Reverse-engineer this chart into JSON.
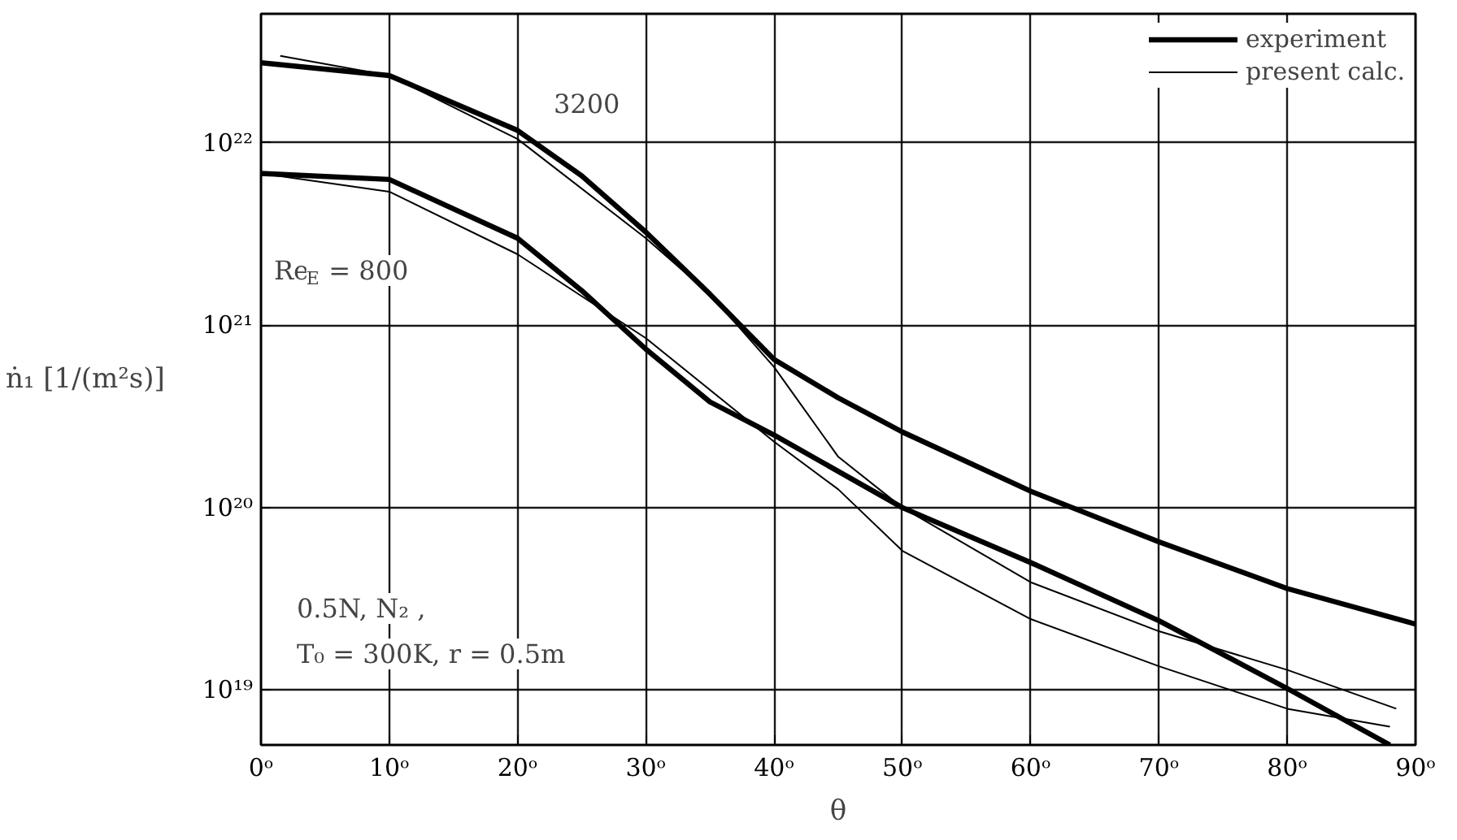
{
  "chart_data": {
    "type": "line",
    "xlabel": "θ",
    "ylabel": "ṅ₁ [1/(m²s)]",
    "log": "y",
    "grid": true,
    "legend": "top right",
    "marker": "none",
    "line_style": "solid",
    "xlim": [
      0,
      90
    ],
    "xticks": [
      {
        "value": 0,
        "label": "0ᵒ"
      },
      {
        "value": 10,
        "label": "10ᵒ"
      },
      {
        "value": 20,
        "label": "20ᵒ"
      },
      {
        "value": 30,
        "label": "30ᵒ"
      },
      {
        "value": 40,
        "label": "40ᵒ"
      },
      {
        "value": 50,
        "label": "50ᵒ"
      },
      {
        "value": 60,
        "label": "60ᵒ"
      },
      {
        "value": 70,
        "label": "70ᵒ"
      },
      {
        "value": 80,
        "label": "80ᵒ"
      },
      {
        "value": 90,
        "label": "90ᵒ"
      }
    ],
    "ylim": [
      5e+18,
      5.1e+22
    ],
    "yticks": [
      {
        "value": 1e+19,
        "label": "10¹⁹"
      },
      {
        "value": 1e+20,
        "label": "10²⁰"
      },
      {
        "value": 1e+21,
        "label": "10²¹"
      },
      {
        "value": 1e+22,
        "label": "10²²"
      }
    ],
    "series": [
      {
        "name": "experiment",
        "color": "#000000",
        "x": [
          0,
          10,
          20,
          25,
          30,
          35,
          40,
          45,
          50,
          60,
          70,
          80,
          90
        ],
        "values": [
          2.75e+22,
          2.34e+22,
          1.17e+22,
          6.6e+21,
          3.24e+21,
          1.48e+21,
          6.5e+20,
          4e+20,
          2.6e+20,
          1.23e+20,
          6.5e+19,
          3.6e+19,
          2.3e+19
        ]
      },
      {
        "color": "#000000",
        "x": [
          0,
          10,
          20,
          25,
          30,
          35,
          40,
          50,
          60,
          70,
          80,
          88
        ],
        "values": [
          6.8e+21,
          6.3e+21,
          3e+21,
          1.55e+21,
          7.4e+20,
          3.8e+20,
          2.5e+20,
          1e+20,
          5e+19,
          2.4e+19,
          1.02e+19,
          5e+18
        ]
      },
      {
        "name": "present calc.",
        "color": "#000000",
        "x": [
          1.5,
          10,
          20,
          30,
          35,
          40,
          45,
          50,
          60,
          70,
          80,
          88.5
        ],
        "values": [
          3e+22,
          2.34e+22,
          1.05e+22,
          3e+21,
          1.48e+21,
          5.9e+20,
          1.9e+20,
          1e+20,
          3.9e+19,
          2.1e+19,
          1.29e+19,
          7.9e+18
        ]
      },
      {
        "color": "#000000",
        "x": [
          0,
          10,
          20,
          30,
          40,
          45,
          50,
          60,
          70,
          80,
          88
        ],
        "values": [
          6.8e+21,
          5.4e+21,
          2.45e+21,
          8.5e+20,
          2.3e+20,
          1.26e+20,
          5.8e+19,
          2.45e+19,
          1.35e+19,
          7.9e+18,
          6.3e+18
        ]
      }
    ],
    "annotations": [
      "3200",
      "Re$_{E}$ = 800",
      "0.5N, N₂ ,",
      "T₀ = 300K, r = 0.5m"
    ]
  }
}
